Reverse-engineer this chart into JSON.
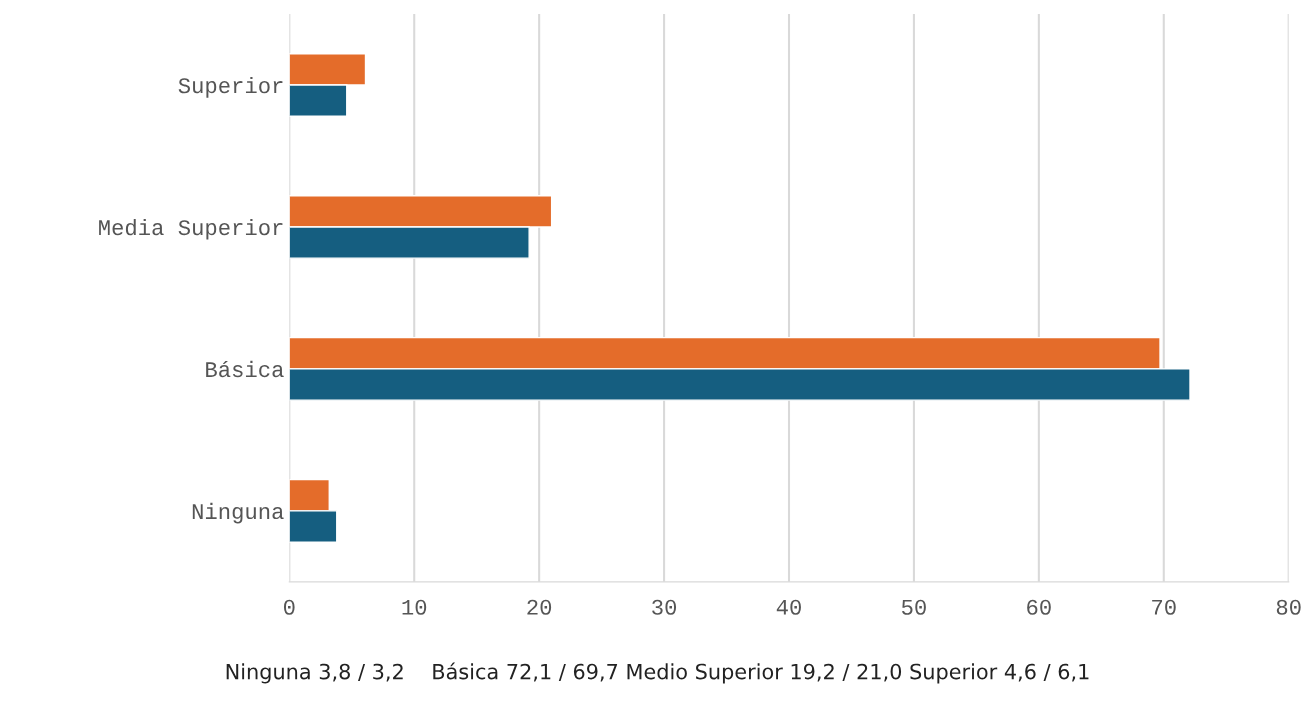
{
  "chart_data": {
    "type": "bar",
    "orientation": "horizontal",
    "categories": [
      "Superior",
      "Media Superior",
      "Básica",
      "Ninguna"
    ],
    "series": [
      {
        "color": "#e46c2a",
        "values": [
          6.1,
          21.0,
          69.7,
          3.2
        ]
      },
      {
        "color": "#155e80",
        "values": [
          4.6,
          19.2,
          72.1,
          3.8
        ]
      }
    ],
    "xlim": [
      0,
      80
    ],
    "xticks": [
      0,
      10,
      20,
      30,
      40,
      50,
      60,
      70,
      80
    ],
    "grid": "x",
    "annotations": [
      "Ninguna 3,8 / 3,2    Básica 72,1 / 69,7 Medio Superior 19,2 / 21,0 Superior 4,6 / 6,1"
    ]
  }
}
